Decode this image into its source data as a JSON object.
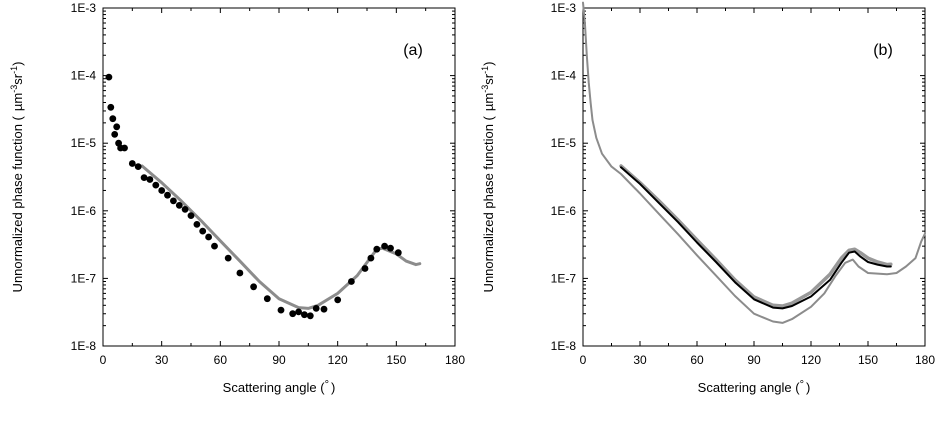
{
  "chart_data": [
    {
      "type": "scatter",
      "panel_label": "(a)",
      "xlabel_text": "Scattering angle (",
      "xlabel_unit": "°",
      "xlabel_close": ")",
      "ylabel_text": "Unnormalized phase function (",
      "ylabel_unit_mu": "µm",
      "ylabel_unit_m3": "-3",
      "ylabel_unit_sr": "sr",
      "ylabel_unit_m1": "-1",
      "ylabel_close": ")",
      "xlim": [
        0,
        180
      ],
      "ylim": [
        1e-08,
        0.001
      ],
      "yscale": "log",
      "x_ticks": [
        0,
        30,
        60,
        90,
        120,
        150,
        180
      ],
      "y_tick_labels": [
        "1E-8",
        "1E-7",
        "1E-6",
        "1E-5",
        "1E-4",
        "1E-3"
      ],
      "grid": false,
      "series": [
        {
          "style": "line",
          "color": "#8c8c8c",
          "x": [
            20,
            30,
            40,
            50,
            60,
            70,
            80,
            90,
            100,
            105,
            110,
            120,
            130,
            140,
            143,
            150,
            155,
            160,
            162
          ],
          "y": [
            4.6e-06,
            2.6e-06,
            1.4e-06,
            7.2e-07,
            3.6e-07,
            1.8e-07,
            9e-08,
            5e-08,
            3.7e-08,
            3.6e-08,
            4e-08,
            6e-08,
            1.1e-07,
            2.7e-07,
            2.8e-07,
            2.3e-07,
            1.8e-07,
            1.6e-07,
            1.65e-07
          ]
        },
        {
          "style": "points",
          "color": "#000000",
          "x": [
            3,
            4,
            5,
            6,
            7,
            8,
            9,
            11,
            15,
            18,
            21,
            24,
            27,
            30,
            33,
            36,
            39,
            42,
            45,
            48,
            51,
            54,
            57,
            64,
            70,
            77,
            84,
            91,
            97,
            100,
            103,
            106,
            109,
            113,
            120,
            127,
            134,
            137,
            140,
            144,
            147,
            151
          ],
          "y": [
            9.5e-05,
            3.4e-05,
            2.3e-05,
            1.35e-05,
            1.75e-05,
            1e-05,
            8.5e-06,
            8.5e-06,
            5e-06,
            4.5e-06,
            3.1e-06,
            2.9e-06,
            2.4e-06,
            2e-06,
            1.7e-06,
            1.4e-06,
            1.2e-06,
            1.05e-06,
            8.5e-07,
            6.3e-07,
            5e-07,
            4.1e-07,
            3e-07,
            2e-07,
            1.2e-07,
            7.5e-08,
            5e-08,
            3.4e-08,
            3e-08,
            3.2e-08,
            2.9e-08,
            2.8e-08,
            3.6e-08,
            3.5e-08,
            4.8e-08,
            9e-08,
            1.4e-07,
            2e-07,
            2.7e-07,
            3e-07,
            2.8e-07,
            2.4e-07
          ]
        }
      ]
    },
    {
      "type": "line",
      "panel_label": "(b)",
      "xlabel_text": "Scattering angle (",
      "xlabel_unit": "°",
      "xlabel_close": ")",
      "ylabel_text": "Unnormalized phase function (",
      "ylabel_unit_mu": "µm",
      "ylabel_unit_m3": "-3",
      "ylabel_unit_sr": "sr",
      "ylabel_unit_m1": "-1",
      "ylabel_close": ")",
      "xlim": [
        0,
        180
      ],
      "ylim": [
        1e-08,
        0.001
      ],
      "yscale": "log",
      "x_ticks": [
        0,
        30,
        60,
        90,
        120,
        150,
        180
      ],
      "y_tick_labels": [
        "1E-8",
        "1E-7",
        "1E-6",
        "1E-5",
        "1E-4",
        "1E-3"
      ],
      "grid": false,
      "series": [
        {
          "style": "line",
          "color": "#8c8c8c",
          "width": 2,
          "x": [
            0,
            1,
            2,
            3,
            4,
            5,
            7,
            10,
            15,
            20,
            30,
            40,
            50,
            60,
            70,
            80,
            90,
            100,
            105,
            110,
            120,
            127,
            133,
            138,
            142,
            145,
            150,
            160,
            165,
            170,
            175,
            178,
            180
          ],
          "y": [
            0.0012,
            0.0006,
            0.0002,
            8e-05,
            4e-05,
            2.2e-05,
            1.2e-05,
            7e-06,
            4.5e-06,
            3.5e-06,
            1.8e-06,
            9e-07,
            4.5e-07,
            2.2e-07,
            1.1e-07,
            5.5e-08,
            3e-08,
            2.3e-08,
            2.2e-08,
            2.5e-08,
            3.8e-08,
            6e-08,
            1.1e-07,
            1.7e-07,
            1.9e-07,
            1.5e-07,
            1.2e-07,
            1.15e-07,
            1.2e-07,
            1.5e-07,
            2e-07,
            3.5e-07,
            4.6e-07
          ]
        },
        {
          "style": "line",
          "color": "#999999",
          "width": 3.5,
          "x": [
            20,
            30,
            40,
            50,
            60,
            70,
            80,
            90,
            100,
            105,
            110,
            120,
            130,
            136,
            140,
            143,
            146,
            150,
            155,
            160,
            162
          ],
          "y": [
            4.6e-06,
            2.6e-06,
            1.4e-06,
            7.3e-07,
            3.7e-07,
            1.9e-07,
            9.5e-08,
            5.3e-08,
            4e-08,
            3.9e-08,
            4.3e-08,
            6.2e-08,
            1.15e-07,
            2e-07,
            2.6e-07,
            2.7e-07,
            2.4e-07,
            2e-07,
            1.75e-07,
            1.6e-07,
            1.62e-07
          ]
        },
        {
          "style": "line",
          "color": "#000000",
          "width": 2,
          "x": [
            20,
            30,
            40,
            50,
            60,
            70,
            80,
            90,
            100,
            105,
            110,
            120,
            130,
            136,
            140,
            143,
            146,
            150,
            155,
            160,
            162
          ],
          "y": [
            4.4e-06,
            2.5e-06,
            1.3e-06,
            6.8e-07,
            3.4e-07,
            1.75e-07,
            8.8e-08,
            4.9e-08,
            3.7e-08,
            3.6e-08,
            3.9e-08,
            5.4e-08,
            9.5e-08,
            1.7e-07,
            2.4e-07,
            2.5e-07,
            2.1e-07,
            1.75e-07,
            1.6e-07,
            1.5e-07,
            1.5e-07
          ]
        }
      ]
    }
  ]
}
